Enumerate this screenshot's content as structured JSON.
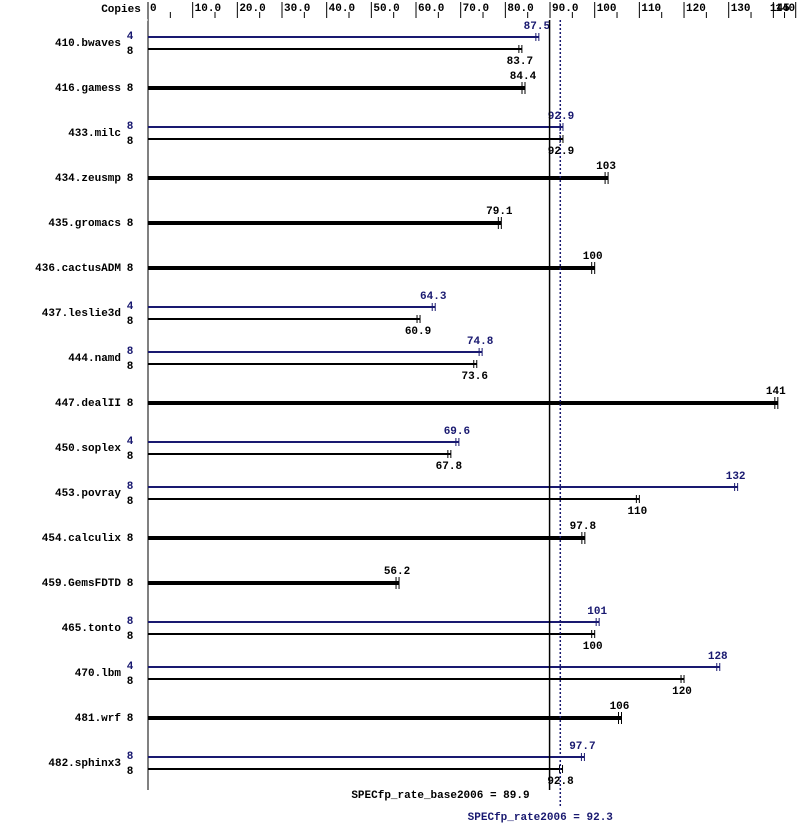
{
  "chart_data": {
    "type": "bar",
    "orientation": "horizontal",
    "copies_header": "Copies",
    "categories": [
      "410.bwaves",
      "416.gamess",
      "433.milc",
      "434.zeusmp",
      "435.gromacs",
      "436.cactusADM",
      "437.leslie3d",
      "444.namd",
      "447.dealII",
      "450.soplex",
      "453.povray",
      "454.calculix",
      "459.GemsFDTD",
      "465.tonto",
      "470.lbm",
      "481.wrf",
      "482.sphinx3"
    ],
    "series": [
      {
        "color": "#191970",
        "copies": [
          4,
          null,
          8,
          null,
          null,
          null,
          4,
          8,
          null,
          4,
          8,
          null,
          null,
          8,
          4,
          null,
          8
        ],
        "values": [
          87.5,
          null,
          92.9,
          null,
          null,
          null,
          64.3,
          74.8,
          null,
          69.6,
          132,
          null,
          null,
          101,
          128,
          null,
          97.7
        ]
      },
      {
        "color": "#000000",
        "copies": [
          8,
          8,
          8,
          8,
          8,
          8,
          8,
          8,
          8,
          8,
          8,
          8,
          8,
          8,
          8,
          8,
          8
        ],
        "values": [
          83.7,
          84.4,
          92.9,
          103,
          79.1,
          100,
          60.9,
          73.6,
          141,
          67.8,
          110,
          97.8,
          56.2,
          100,
          120,
          106,
          92.8
        ]
      }
    ],
    "xlim": [
      0,
      145
    ],
    "xticks": [
      0,
      {
        "value": 10,
        "label": "10.0"
      },
      {
        "value": 20,
        "label": "20.0"
      },
      {
        "value": 30,
        "label": "30.0"
      },
      {
        "value": 40,
        "label": "40.0"
      },
      {
        "value": 50,
        "label": "50.0"
      },
      {
        "value": 60,
        "label": "60.0"
      },
      {
        "value": 70,
        "label": "70.0"
      },
      {
        "value": 80,
        "label": "80.0"
      },
      {
        "value": 90,
        "label": "90.0"
      },
      100,
      110,
      120,
      130,
      140,
      145
    ],
    "base_result": {
      "label": "SPECfp_rate_base2006 = 89.9",
      "value": 89.9,
      "color": "#000000"
    },
    "peak_result": {
      "label": "SPECfp_rate2006 = 92.3",
      "value": 92.3,
      "color": "#191970"
    }
  }
}
